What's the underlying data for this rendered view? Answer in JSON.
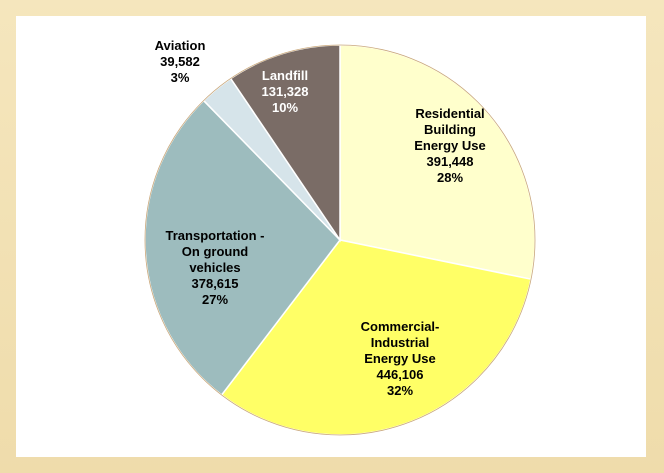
{
  "chart_data": {
    "type": "pie",
    "title": "",
    "start_angle_deg": 0,
    "direction": "clockwise",
    "slices": [
      {
        "lines": [
          "Residential",
          "Building",
          "Energy Use"
        ],
        "value": 391448,
        "value_label": "391,448",
        "percent": "28%",
        "color": "#ffffcc",
        "text_color": "#000000"
      },
      {
        "lines": [
          "Commercial-",
          "Industrial",
          "Energy Use"
        ],
        "value": 446106,
        "value_label": "446,106",
        "percent": "32%",
        "color": "#ffff66",
        "text_color": "#000000"
      },
      {
        "lines": [
          "Transportation -",
          "On ground",
          "vehicles"
        ],
        "value": 378615,
        "value_label": "378,615",
        "percent": "27%",
        "color": "#9dbcbe",
        "text_color": "#000000"
      },
      {
        "lines": [
          "Aviation"
        ],
        "value": 39582,
        "value_label": "39,582",
        "percent": "3%",
        "color": "#d6e4ea",
        "text_color": "#000000"
      },
      {
        "lines": [
          "Landfill"
        ],
        "value": 131328,
        "value_label": "131,328",
        "percent": "10%",
        "color": "#7a6c66",
        "text_color": "#ffffff"
      }
    ]
  }
}
